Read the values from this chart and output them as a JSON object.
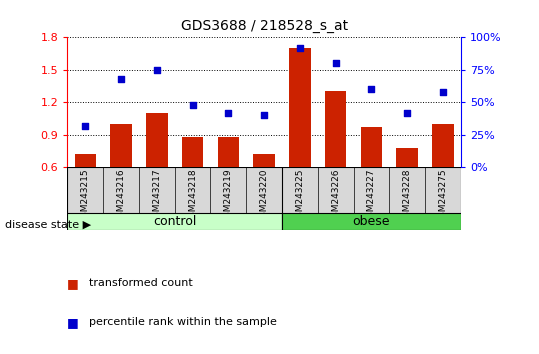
{
  "title": "GDS3688 / 218528_s_at",
  "samples": [
    "GSM243215",
    "GSM243216",
    "GSM243217",
    "GSM243218",
    "GSM243219",
    "GSM243220",
    "GSM243225",
    "GSM243226",
    "GSM243227",
    "GSM243228",
    "GSM243275"
  ],
  "red_values": [
    0.72,
    1.0,
    1.1,
    0.88,
    0.88,
    0.72,
    1.7,
    1.3,
    0.97,
    0.78,
    1.0
  ],
  "blue_values": [
    32,
    68,
    75,
    48,
    42,
    40,
    92,
    80,
    60,
    42,
    58
  ],
  "ylim_left": [
    0.6,
    1.8
  ],
  "ylim_right": [
    0,
    100
  ],
  "yticks_left": [
    0.6,
    0.9,
    1.2,
    1.5,
    1.8
  ],
  "yticks_right": [
    0,
    25,
    50,
    75,
    100
  ],
  "ytick_labels_right": [
    "0%",
    "25%",
    "50%",
    "75%",
    "100%"
  ],
  "control_color": "#c8ffc8",
  "obese_color": "#50d050",
  "group_label": "disease state",
  "bar_color": "#cc2200",
  "dot_color": "#0000cc",
  "legend_label_red": "transformed count",
  "legend_label_blue": "percentile rank within the sample",
  "bar_width": 0.6,
  "sample_bg_color": "#d8d8d8",
  "control_divider": 5.5
}
